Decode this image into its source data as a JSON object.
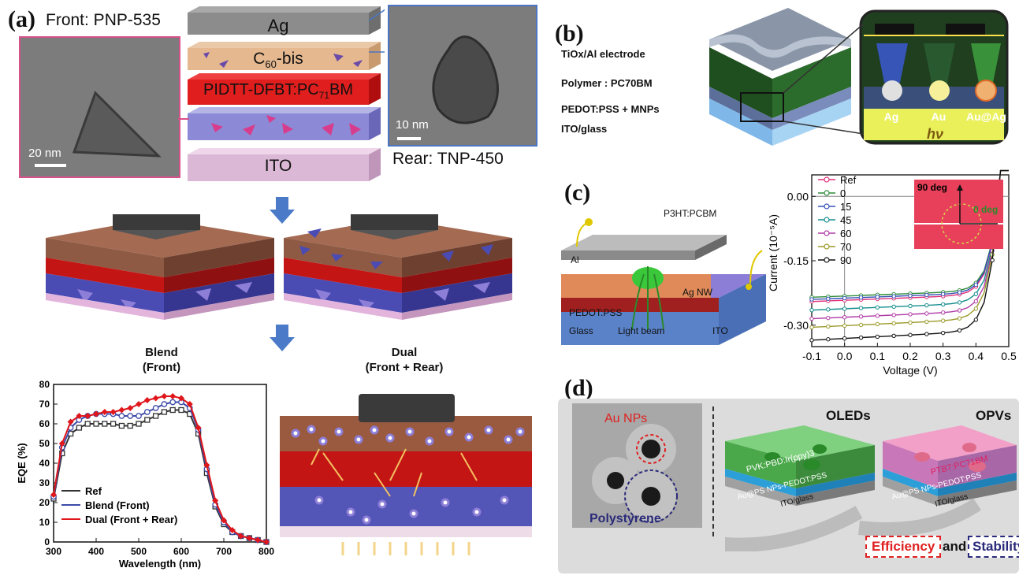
{
  "panel_a": {
    "letter": "(a)",
    "front_label": "Front: PNP-535",
    "rear_label": "Rear: TNP-450",
    "scalebar_front": "20 nm",
    "scalebar_rear": "10 nm",
    "layers": [
      "Ag",
      "C60-bis",
      "PIDTT-DFBT:PC71BM",
      "ITO"
    ],
    "layer_c60_main": "C",
    "layer_c60_sub": "60",
    "layer_c60_tail": "-bis",
    "layer_active_main": "PIDTT-DFBT:PC",
    "layer_active_sub": "71",
    "layer_active_tail": "BM",
    "label_blend": "Blend",
    "label_blend_sub": "(Front)",
    "label_dual": "Dual",
    "label_dual_sub": "(Front + Rear)"
  },
  "chart_data": {
    "type": "line",
    "xlabel": "Wavelength (nm)",
    "ylabel": "EQE (%)",
    "xlim": [
      300,
      800
    ],
    "ylim": [
      0,
      80
    ],
    "xticks": [
      300,
      400,
      500,
      600,
      700,
      800
    ],
    "yticks": [
      0,
      10,
      20,
      30,
      40,
      50,
      60,
      70,
      80
    ],
    "x": [
      300,
      320,
      340,
      360,
      380,
      400,
      420,
      440,
      460,
      480,
      500,
      520,
      540,
      560,
      580,
      600,
      620,
      640,
      660,
      680,
      700,
      720,
      740,
      760,
      780,
      800
    ],
    "series": [
      {
        "name": "Ref",
        "color": "#333333",
        "marker": "square-open",
        "values": [
          22,
          45,
          55,
          58,
          60,
          60,
          60,
          60,
          59,
          59,
          60,
          62,
          64,
          66,
          67,
          67,
          65,
          55,
          35,
          18,
          9,
          5,
          3,
          2,
          1,
          0
        ]
      },
      {
        "name": "Blend (Front)",
        "color": "#3c4aa8",
        "marker": "circle-open",
        "values": [
          23,
          48,
          58,
          62,
          64,
          65,
          65,
          65,
          64,
          64,
          64,
          66,
          68,
          70,
          71,
          71,
          68,
          57,
          37,
          19,
          10,
          5,
          3,
          2,
          1,
          0
        ]
      },
      {
        "name": "Dual (Front + Rear)",
        "color": "#e0161b",
        "marker": "diamond-filled",
        "values": [
          24,
          50,
          61,
          64,
          64,
          65,
          66,
          66,
          67,
          68,
          70,
          72,
          73,
          74,
          74,
          73,
          70,
          58,
          39,
          21,
          11,
          6,
          3,
          2,
          1,
          0
        ]
      }
    ],
    "legend": "bottom-left"
  },
  "panel_b": {
    "letter": "(b)",
    "labels": [
      "TiOx/Al electrode",
      "Polymer : PC70BM",
      "PEDOT:PSS + MNPs",
      "ITO/glass"
    ],
    "np_labels": [
      "Ag",
      "Au",
      "Au@Ag"
    ],
    "hv": "hν"
  },
  "panel_c": {
    "letter": "(c)",
    "device_labels": [
      "Al",
      "P3HT:PCBM",
      "Ag NW",
      "PEDOT:PSS",
      "Glass",
      "Light beam",
      "ITO"
    ],
    "chart": {
      "type": "line",
      "xlabel": "Voltage (V)",
      "ylabel": "Current (10⁻⁵A)",
      "xlim": [
        -0.1,
        0.5
      ],
      "ylim": [
        -0.35,
        0.05
      ],
      "xticks": [
        "-0.1",
        "0.0",
        "0.1",
        "0.2",
        "0.3",
        "0.4",
        "0.5"
      ],
      "yticks": [
        "0.00",
        "-0.15",
        "-0.30"
      ],
      "legend": [
        "Ref",
        "0",
        "15",
        "45",
        "60",
        "70",
        "90"
      ],
      "colors": [
        "#e0307a",
        "#2e8b3a",
        "#3552b8",
        "#178e8e",
        "#b03aa6",
        "#9a9a2a",
        "#111111"
      ],
      "jsc": [
        -0.245,
        -0.235,
        -0.24,
        -0.265,
        -0.285,
        -0.305,
        -0.335
      ],
      "inset_labels": [
        "90 deg",
        "0 deg"
      ]
    }
  },
  "panel_d": {
    "letter": "(d)",
    "au_nps": "Au NPs",
    "polystyrene": "Polystyrene",
    "oleds": "OLEDs",
    "opvs": "OPVs",
    "oled_layer": "PVK:PBD:Ir(ppy)3",
    "opv_layer": "PTB7:PC71BM",
    "buffer": "Au@PS NPs-PEDOT:PSS",
    "substrate": "ITO/glass",
    "efficiency": "Efficiency",
    "and": "and",
    "stability": "Stability"
  }
}
